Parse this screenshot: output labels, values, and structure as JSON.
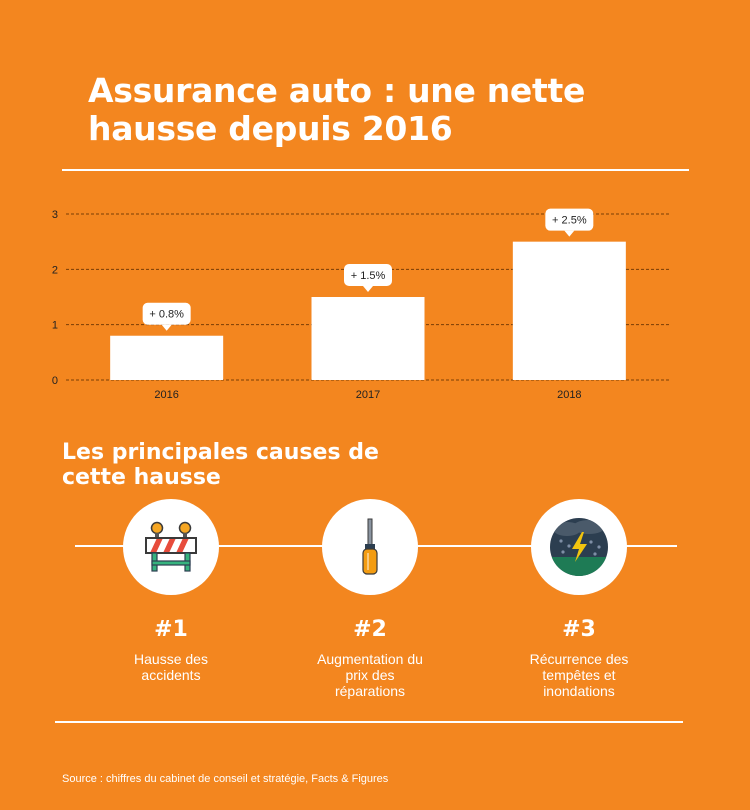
{
  "header": {
    "title": "Assurance auto : une nette hausse depuis 2016"
  },
  "chart_data": {
    "type": "bar",
    "categories": [
      "2016",
      "2017",
      "2018"
    ],
    "values": [
      0.8,
      1.5,
      2.5
    ],
    "data_labels": [
      "+ 0.8%",
      "+ 1.5%",
      "+ 2.5%"
    ],
    "yticks": [
      "0",
      "1",
      "2",
      "3"
    ],
    "ylim": [
      0,
      3
    ],
    "grid": true,
    "bar_color": "#ffffff",
    "title": "",
    "xlabel": "",
    "ylabel": ""
  },
  "causes": {
    "title": "Les principales causes de cette hausse",
    "items": [
      {
        "rank": "#1",
        "label": "Hausse des accidents",
        "icon": "road-barrier-icon"
      },
      {
        "rank": "#2",
        "label": "Augmentation du prix des réparations",
        "icon": "screwdriver-icon"
      },
      {
        "rank": "#3",
        "label": "Récurrence des tempêtes et inondations",
        "icon": "storm-icon"
      }
    ]
  },
  "footer": {
    "source": "Source : chiffres du cabinet de conseil et stratégie, Facts & Figures"
  },
  "colors": {
    "background": "#F3861F",
    "accent": "#ffffff",
    "text_dark": "#222222"
  }
}
